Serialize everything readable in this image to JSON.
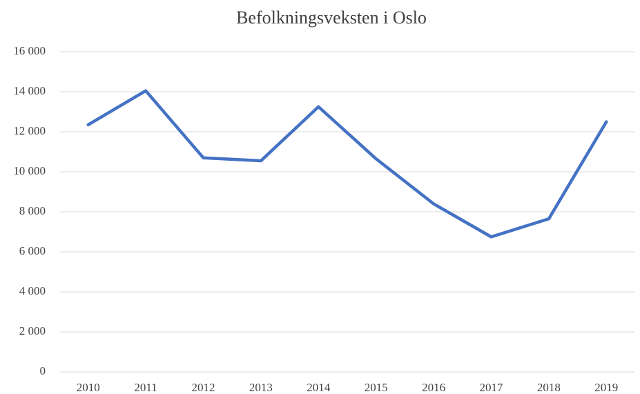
{
  "chart_data": {
    "type": "line",
    "title": "Befolkningsveksten i Oslo",
    "categories": [
      "2010",
      "2011",
      "2012",
      "2013",
      "2014",
      "2015",
      "2016",
      "2017",
      "2018",
      "2019"
    ],
    "series": [
      {
        "name": "Befolkningsvekst",
        "color": "#4472c4",
        "values": [
          12350,
          14050,
          10700,
          10550,
          13250,
          10650,
          8400,
          6750,
          7650,
          12500
        ]
      }
    ],
    "ylim": [
      0,
      16000
    ],
    "yticks": [
      0,
      {
        "value": 2000,
        "label": "2 000"
      },
      {
        "value": 4000,
        "label": "4 000"
      },
      {
        "value": 6000,
        "label": "6 000"
      },
      {
        "value": 8000,
        "label": "8 000"
      },
      {
        "value": 10000,
        "label": "10 000"
      },
      {
        "value": 12000,
        "label": "12 000"
      },
      {
        "value": 14000,
        "label": "14 000"
      },
      {
        "value": 16000,
        "label": "16 000"
      }
    ],
    "grid": true
  }
}
